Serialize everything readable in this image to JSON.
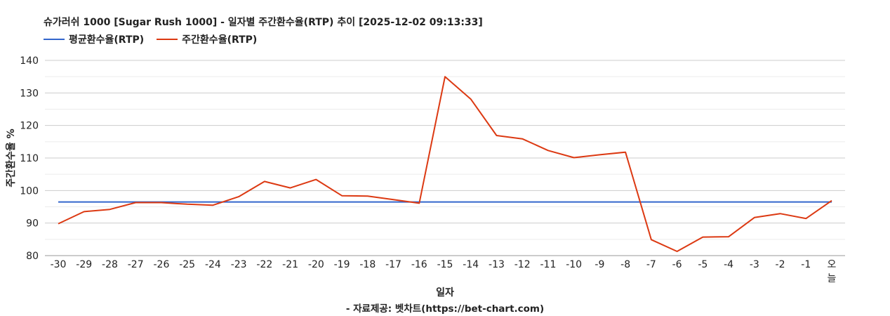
{
  "title": "슈가러쉬 1000 [Sugar Rush 1000] - 일자별 주간환수율(RTP) 추이 [2025-12-02 09:13:33]",
  "source": "- 자료제공: 벳차트(https://bet-chart.com)",
  "chart_data": {
    "type": "line",
    "title": "슈가러쉬 1000 [Sugar Rush 1000] - 일자별 주간환수율(RTP) 추이 [2025-12-02 09:13:33]",
    "xlabel": "일자",
    "ylabel": "주간환수율 %",
    "ylim": [
      80,
      140
    ],
    "yticks": [
      80,
      90,
      100,
      110,
      120,
      130,
      140
    ],
    "grid": true,
    "legend_position": "top-left",
    "categories": [
      "-30",
      "-29",
      "-28",
      "-27",
      "-26",
      "-25",
      "-24",
      "-23",
      "-22",
      "-21",
      "-20",
      "-19",
      "-18",
      "-17",
      "-16",
      "-15",
      "-14",
      "-13",
      "-12",
      "-11",
      "-10",
      "-9",
      "-8",
      "-7",
      "-6",
      "-5",
      "-4",
      "-3",
      "-2",
      "-1",
      "오늘"
    ],
    "series": [
      {
        "name": "평균환수율(RTP)",
        "color": "#3366cc",
        "values": [
          96.5,
          96.5,
          96.5,
          96.5,
          96.5,
          96.5,
          96.5,
          96.5,
          96.5,
          96.5,
          96.5,
          96.5,
          96.5,
          96.5,
          96.5,
          96.5,
          96.5,
          96.5,
          96.5,
          96.5,
          96.5,
          96.5,
          96.5,
          96.5,
          96.5,
          96.5,
          96.5,
          96.5,
          96.5,
          96.5,
          96.5
        ]
      },
      {
        "name": "주간환수율(RTP)",
        "color": "#dc3912",
        "values": [
          89.8,
          93.5,
          94.2,
          96.3,
          96.3,
          95.8,
          95.5,
          98.1,
          102.8,
          100.8,
          103.4,
          98.4,
          98.3,
          97.2,
          96.1,
          135.0,
          128.1,
          116.9,
          115.9,
          112.3,
          110.1,
          111.0,
          111.8,
          84.9,
          81.3,
          85.7,
          85.8,
          91.7,
          92.9,
          91.4,
          96.9
        ]
      }
    ]
  }
}
